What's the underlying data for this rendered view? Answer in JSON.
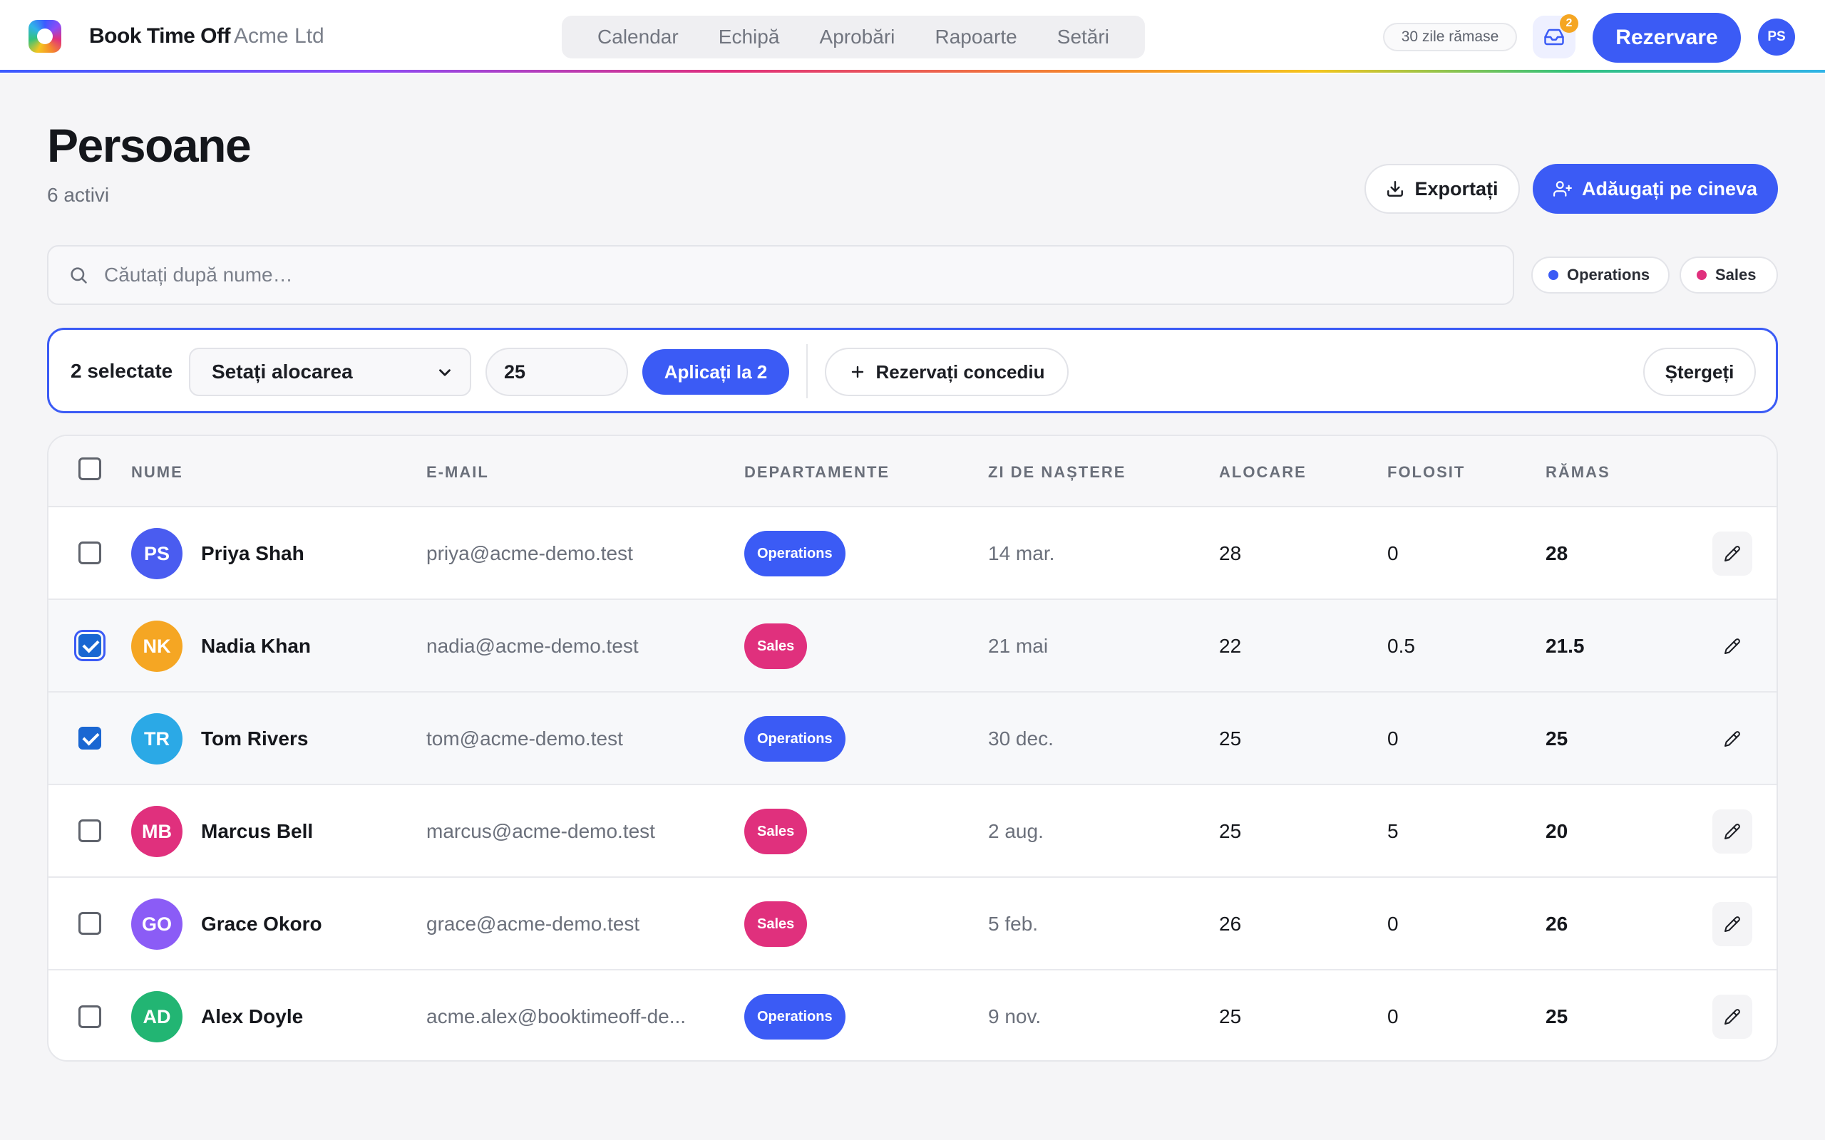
{
  "app": {
    "brand": "Book Time Off",
    "org": "Acme Ltd"
  },
  "nav": [
    "Calendar",
    "Echipă",
    "Aprobări",
    "Rapoarte",
    "Setări"
  ],
  "header": {
    "days_left": "30 zile rămase",
    "inbox_count": "2",
    "book_label": "Rezervare",
    "user_initials": "PS"
  },
  "page": {
    "title": "Persoane",
    "subtitle": "6 activi",
    "export_label": "Exportați",
    "add_label": "Adăugați pe cineva"
  },
  "search": {
    "placeholder": "Căutați după nume…",
    "value": ""
  },
  "filters": [
    {
      "label": "Operations",
      "color": "#3b5bf5"
    },
    {
      "label": "Sales",
      "color": "#e0307d"
    }
  ],
  "bulk": {
    "count_label": "2 selectate",
    "action": "Setați alocarea",
    "value": "25",
    "apply_label": "Aplicați la 2",
    "reserve_label": "Rezervați concediu",
    "clear_label": "Ștergeți"
  },
  "table": {
    "headers": [
      "Nume",
      "E-mail",
      "Departamente",
      "Zi de naștere",
      "Alocare",
      "Folosit",
      "Rămas"
    ],
    "rows": [
      {
        "initials": "PS",
        "name": "Priya Shah",
        "email": "priya@acme-demo.test",
        "dept": "Operations",
        "birthday": "14 mar.",
        "allocation": "28",
        "used": "0",
        "remaining": "28",
        "checked": false,
        "avatar_color": "#4a5cf0",
        "dept_color": "#3b5bf5"
      },
      {
        "initials": "NK",
        "name": "Nadia Khan",
        "email": "nadia@acme-demo.test",
        "dept": "Sales",
        "birthday": "21 mai",
        "allocation": "22",
        "used": "0.5",
        "remaining": "21.5",
        "checked": true,
        "avatar_color": "#f5a623",
        "dept_color": "#e0307d"
      },
      {
        "initials": "TR",
        "name": "Tom Rivers",
        "email": "tom@acme-demo.test",
        "dept": "Operations",
        "birthday": "30 dec.",
        "allocation": "25",
        "used": "0",
        "remaining": "25",
        "checked": true,
        "avatar_color": "#2ba9e6",
        "dept_color": "#3b5bf5"
      },
      {
        "initials": "MB",
        "name": "Marcus Bell",
        "email": "marcus@acme-demo.test",
        "dept": "Sales",
        "birthday": "2 aug.",
        "allocation": "25",
        "used": "5",
        "remaining": "20",
        "checked": false,
        "avatar_color": "#e0307d",
        "dept_color": "#e0307d"
      },
      {
        "initials": "GO",
        "name": "Grace Okoro",
        "email": "grace@acme-demo.test",
        "dept": "Sales",
        "birthday": "5 feb.",
        "allocation": "26",
        "used": "0",
        "remaining": "26",
        "checked": false,
        "avatar_color": "#8b5cf6",
        "dept_color": "#e0307d"
      },
      {
        "initials": "AD",
        "name": "Alex Doyle",
        "email": "acme.alex@booktimeoff-de...",
        "dept": "Operations",
        "birthday": "9 nov.",
        "allocation": "25",
        "used": "0",
        "remaining": "25",
        "checked": false,
        "avatar_color": "#22b573",
        "dept_color": "#3b5bf5"
      }
    ]
  },
  "icons": {
    "logo": "app-logo-icon",
    "inbox": "inbox-icon",
    "search": "search-icon",
    "export": "download-icon",
    "add": "user-plus-icon",
    "select": "chevron-down-icon",
    "reserve": "plus-icon",
    "edit": "pencil-icon"
  }
}
